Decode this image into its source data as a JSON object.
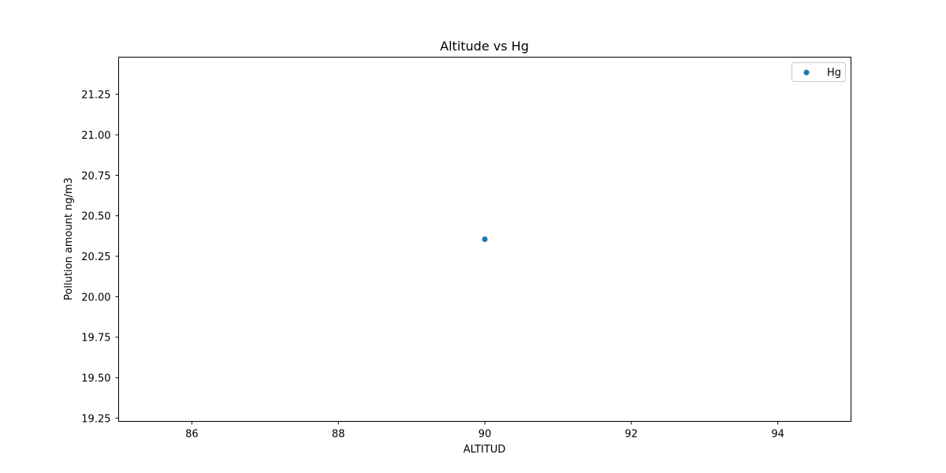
{
  "chart_data": {
    "type": "scatter",
    "title": "Altitude vs Hg",
    "xlabel": "ALTITUD",
    "ylabel": "Pollution amount ng/m3",
    "xlim": [
      85.0,
      95.0
    ],
    "ylim": [
      19.23,
      21.48
    ],
    "x_ticks": [
      86,
      88,
      90,
      92,
      94
    ],
    "x_tick_labels": [
      "86",
      "88",
      "90",
      "92",
      "94"
    ],
    "y_ticks": [
      19.25,
      19.5,
      19.75,
      20.0,
      20.25,
      20.5,
      20.75,
      21.0,
      21.25
    ],
    "y_tick_labels": [
      "19.25",
      "19.50",
      "19.75",
      "20.00",
      "20.25",
      "20.50",
      "20.75",
      "21.00",
      "21.25"
    ],
    "grid": false,
    "legend_position": "upper right",
    "series": [
      {
        "name": "Hg",
        "color": "#1f77b4",
        "points": [
          {
            "x": 90,
            "y": 20.355
          }
        ]
      }
    ]
  }
}
